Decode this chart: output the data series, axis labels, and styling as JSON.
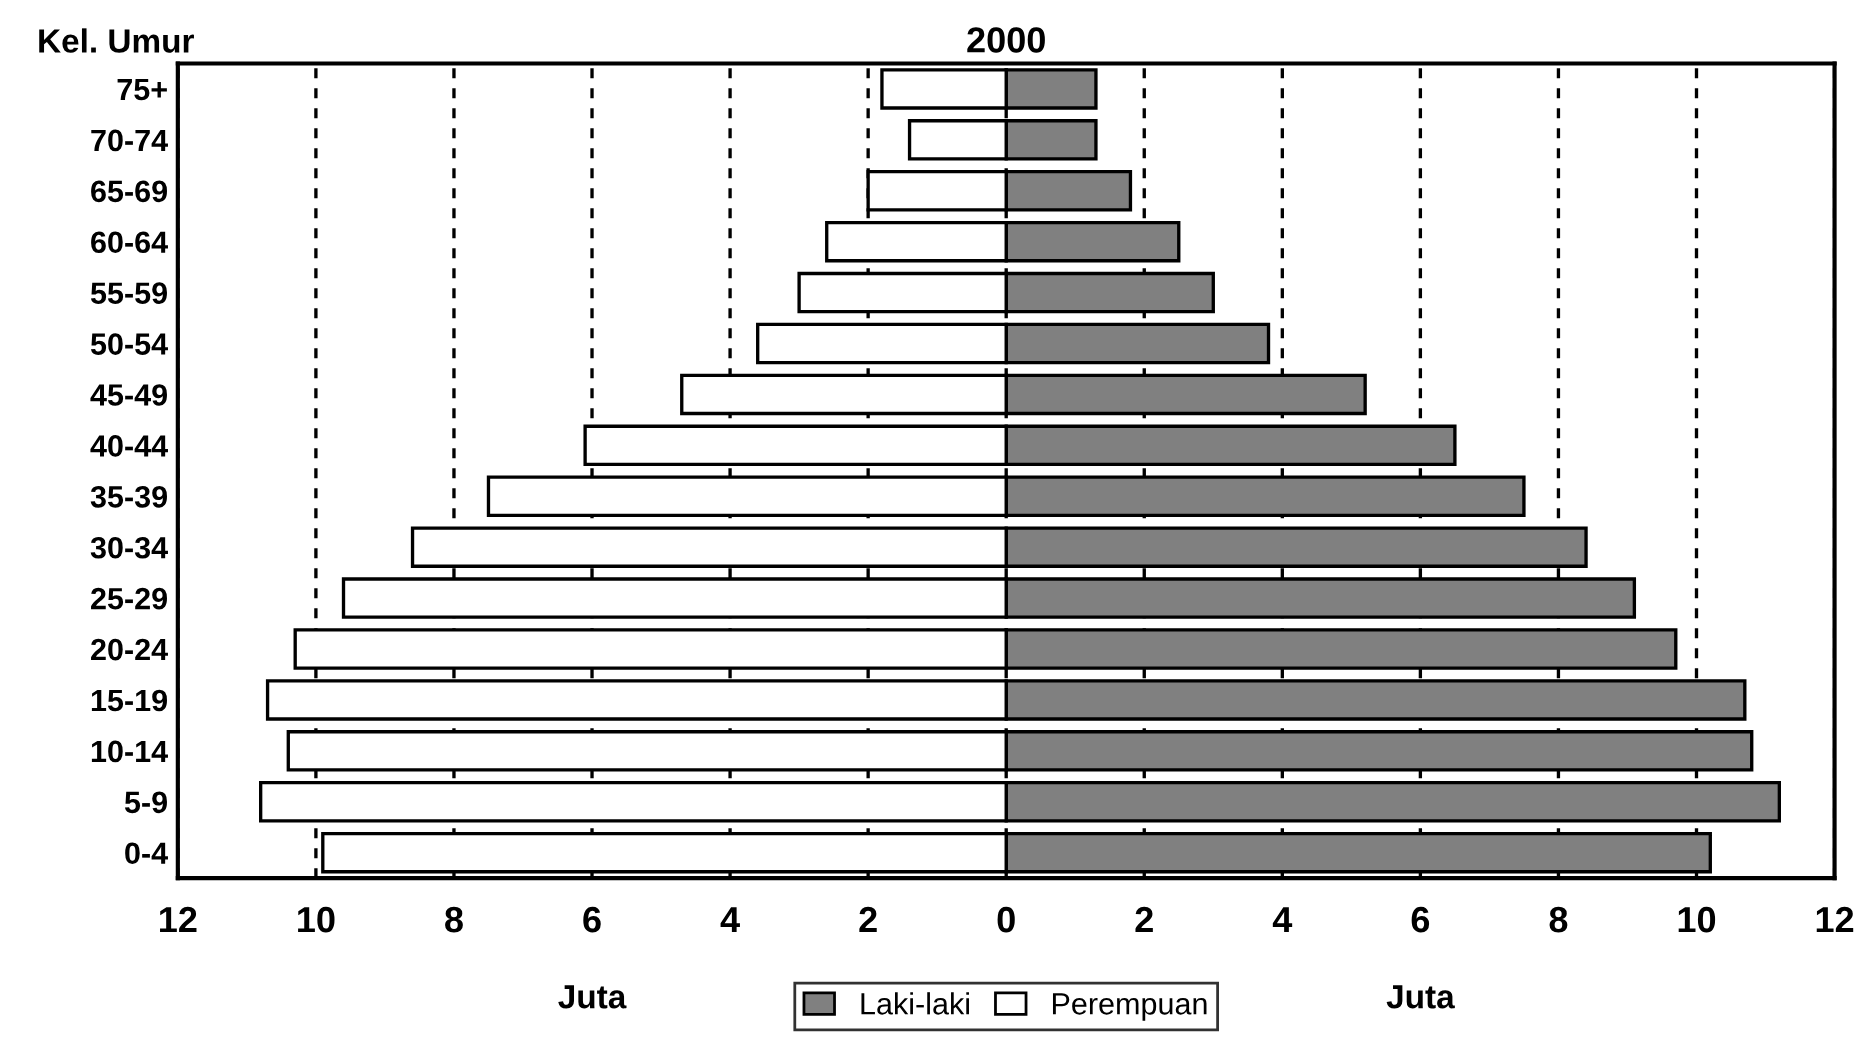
{
  "chart_data": {
    "type": "bar",
    "orientation": "horizontal",
    "title": "2000",
    "ylabel": "Kel. Umur",
    "categories": [
      "75+",
      "70-74",
      "65-69",
      "60-64",
      "55-59",
      "50-54",
      "45-49",
      "40-44",
      "35-39",
      "30-34",
      "25-29",
      "20-24",
      "15-19",
      "10-14",
      "5-9",
      "0-4"
    ],
    "series": [
      {
        "name": "Laki-laki",
        "color": "#808080",
        "values": [
          1.3,
          1.3,
          1.8,
          2.5,
          3.0,
          3.8,
          5.2,
          6.5,
          7.5,
          8.4,
          9.1,
          9.7,
          10.7,
          10.8,
          11.2,
          10.2
        ]
      },
      {
        "name": "Perempuan",
        "color": "#ffffff",
        "values": [
          -1.8,
          -1.4,
          -2.0,
          -2.6,
          -3.0,
          -3.6,
          -4.7,
          -6.1,
          -7.5,
          -8.6,
          -9.6,
          -10.3,
          -10.7,
          -10.4,
          -10.8,
          -9.9
        ]
      }
    ],
    "xlim": [
      -12,
      12
    ],
    "xticks": [
      {
        "value": -12,
        "label": "12"
      },
      {
        "value": -10,
        "label": "10"
      },
      {
        "value": -8,
        "label": "8"
      },
      {
        "value": -6,
        "label": "6"
      },
      {
        "value": -4,
        "label": "4"
      },
      {
        "value": -2,
        "label": "2"
      },
      0,
      2,
      4,
      6,
      8,
      10,
      12
    ],
    "grid": "x",
    "legend": "bottom",
    "stacked": true,
    "annotations": [
      "Juta",
      "Juta"
    ]
  }
}
